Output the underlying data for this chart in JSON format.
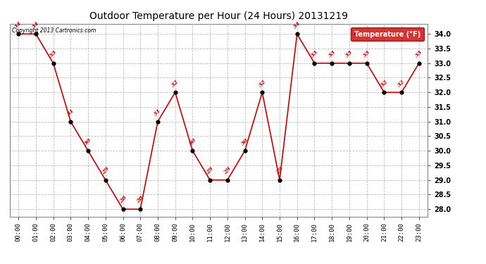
{
  "title": "Outdoor Temperature per Hour (24 Hours) 20131219",
  "hours": [
    "00:00",
    "01:00",
    "02:00",
    "03:00",
    "04:00",
    "05:00",
    "06:00",
    "07:00",
    "08:00",
    "09:00",
    "10:00",
    "11:00",
    "12:00",
    "13:00",
    "14:00",
    "15:00",
    "16:00",
    "17:00",
    "18:00",
    "19:00",
    "20:00",
    "21:00",
    "22:00",
    "23:00"
  ],
  "temperatures": [
    34,
    34,
    33,
    31,
    30,
    29,
    28,
    28,
    31,
    32,
    30,
    29,
    29,
    30,
    32,
    29,
    34,
    33,
    33,
    33,
    33,
    32,
    32,
    33
  ],
  "line_color": "#cc0000",
  "marker_color": "#000000",
  "label_color": "#cc0000",
  "legend_label": "Temperature (°F)",
  "legend_bg": "#cc0000",
  "legend_text_color": "#ffffff",
  "copyright_text": "Copyright 2013 Cartronics.com",
  "ylim_min": 27.75,
  "ylim_max": 34.35,
  "ytick_min": 28.0,
  "ytick_max": 34.0,
  "ytick_step": 0.5,
  "background_color": "#ffffff",
  "grid_color": "#bbbbbb",
  "fig_width": 6.9,
  "fig_height": 3.75,
  "dpi": 100
}
